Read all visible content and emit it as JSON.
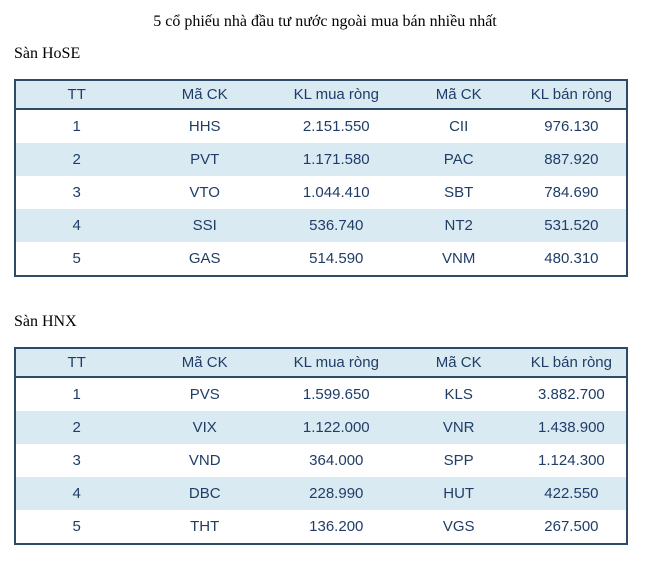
{
  "page": {
    "title": "5 cổ phiếu nhà đầu tư nước ngoài mua bán nhiều nhất"
  },
  "colors": {
    "table_border": "#2d4a66",
    "header_bg": "#daeaf3",
    "row_alt_bg": "#daeaf3",
    "table_text": "#1f3d66",
    "heading_text": "#000000"
  },
  "tables": [
    {
      "section_label": "Sàn HoSE",
      "headers": [
        "TT",
        "Mã CK",
        "KL mua ròng",
        "Mã CK",
        "KL bán ròng"
      ],
      "rows": [
        [
          "1",
          "HHS",
          "2.151.550",
          "CII",
          "976.130"
        ],
        [
          "2",
          "PVT",
          "1.171.580",
          "PAC",
          "887.920"
        ],
        [
          "3",
          "VTO",
          "1.044.410",
          "SBT",
          "784.690"
        ],
        [
          "4",
          "SSI",
          "536.740",
          "NT2",
          "531.520"
        ],
        [
          "5",
          "GAS",
          "514.590",
          "VNM",
          "480.310"
        ]
      ]
    },
    {
      "section_label": "Sàn HNX",
      "headers": [
        "TT",
        "Mã CK",
        "KL mua ròng",
        "Mã CK",
        "KL bán ròng"
      ],
      "rows": [
        [
          "1",
          "PVS",
          "1.599.650",
          "KLS",
          "3.882.700"
        ],
        [
          "2",
          "VIX",
          "1.122.000",
          "VNR",
          "1.438.900"
        ],
        [
          "3",
          "VND",
          "364.000",
          "SPP",
          "1.124.300"
        ],
        [
          "4",
          "DBC",
          "228.990",
          "HUT",
          "422.550"
        ],
        [
          "5",
          "THT",
          "136.200",
          "VGS",
          "267.500"
        ]
      ]
    }
  ]
}
